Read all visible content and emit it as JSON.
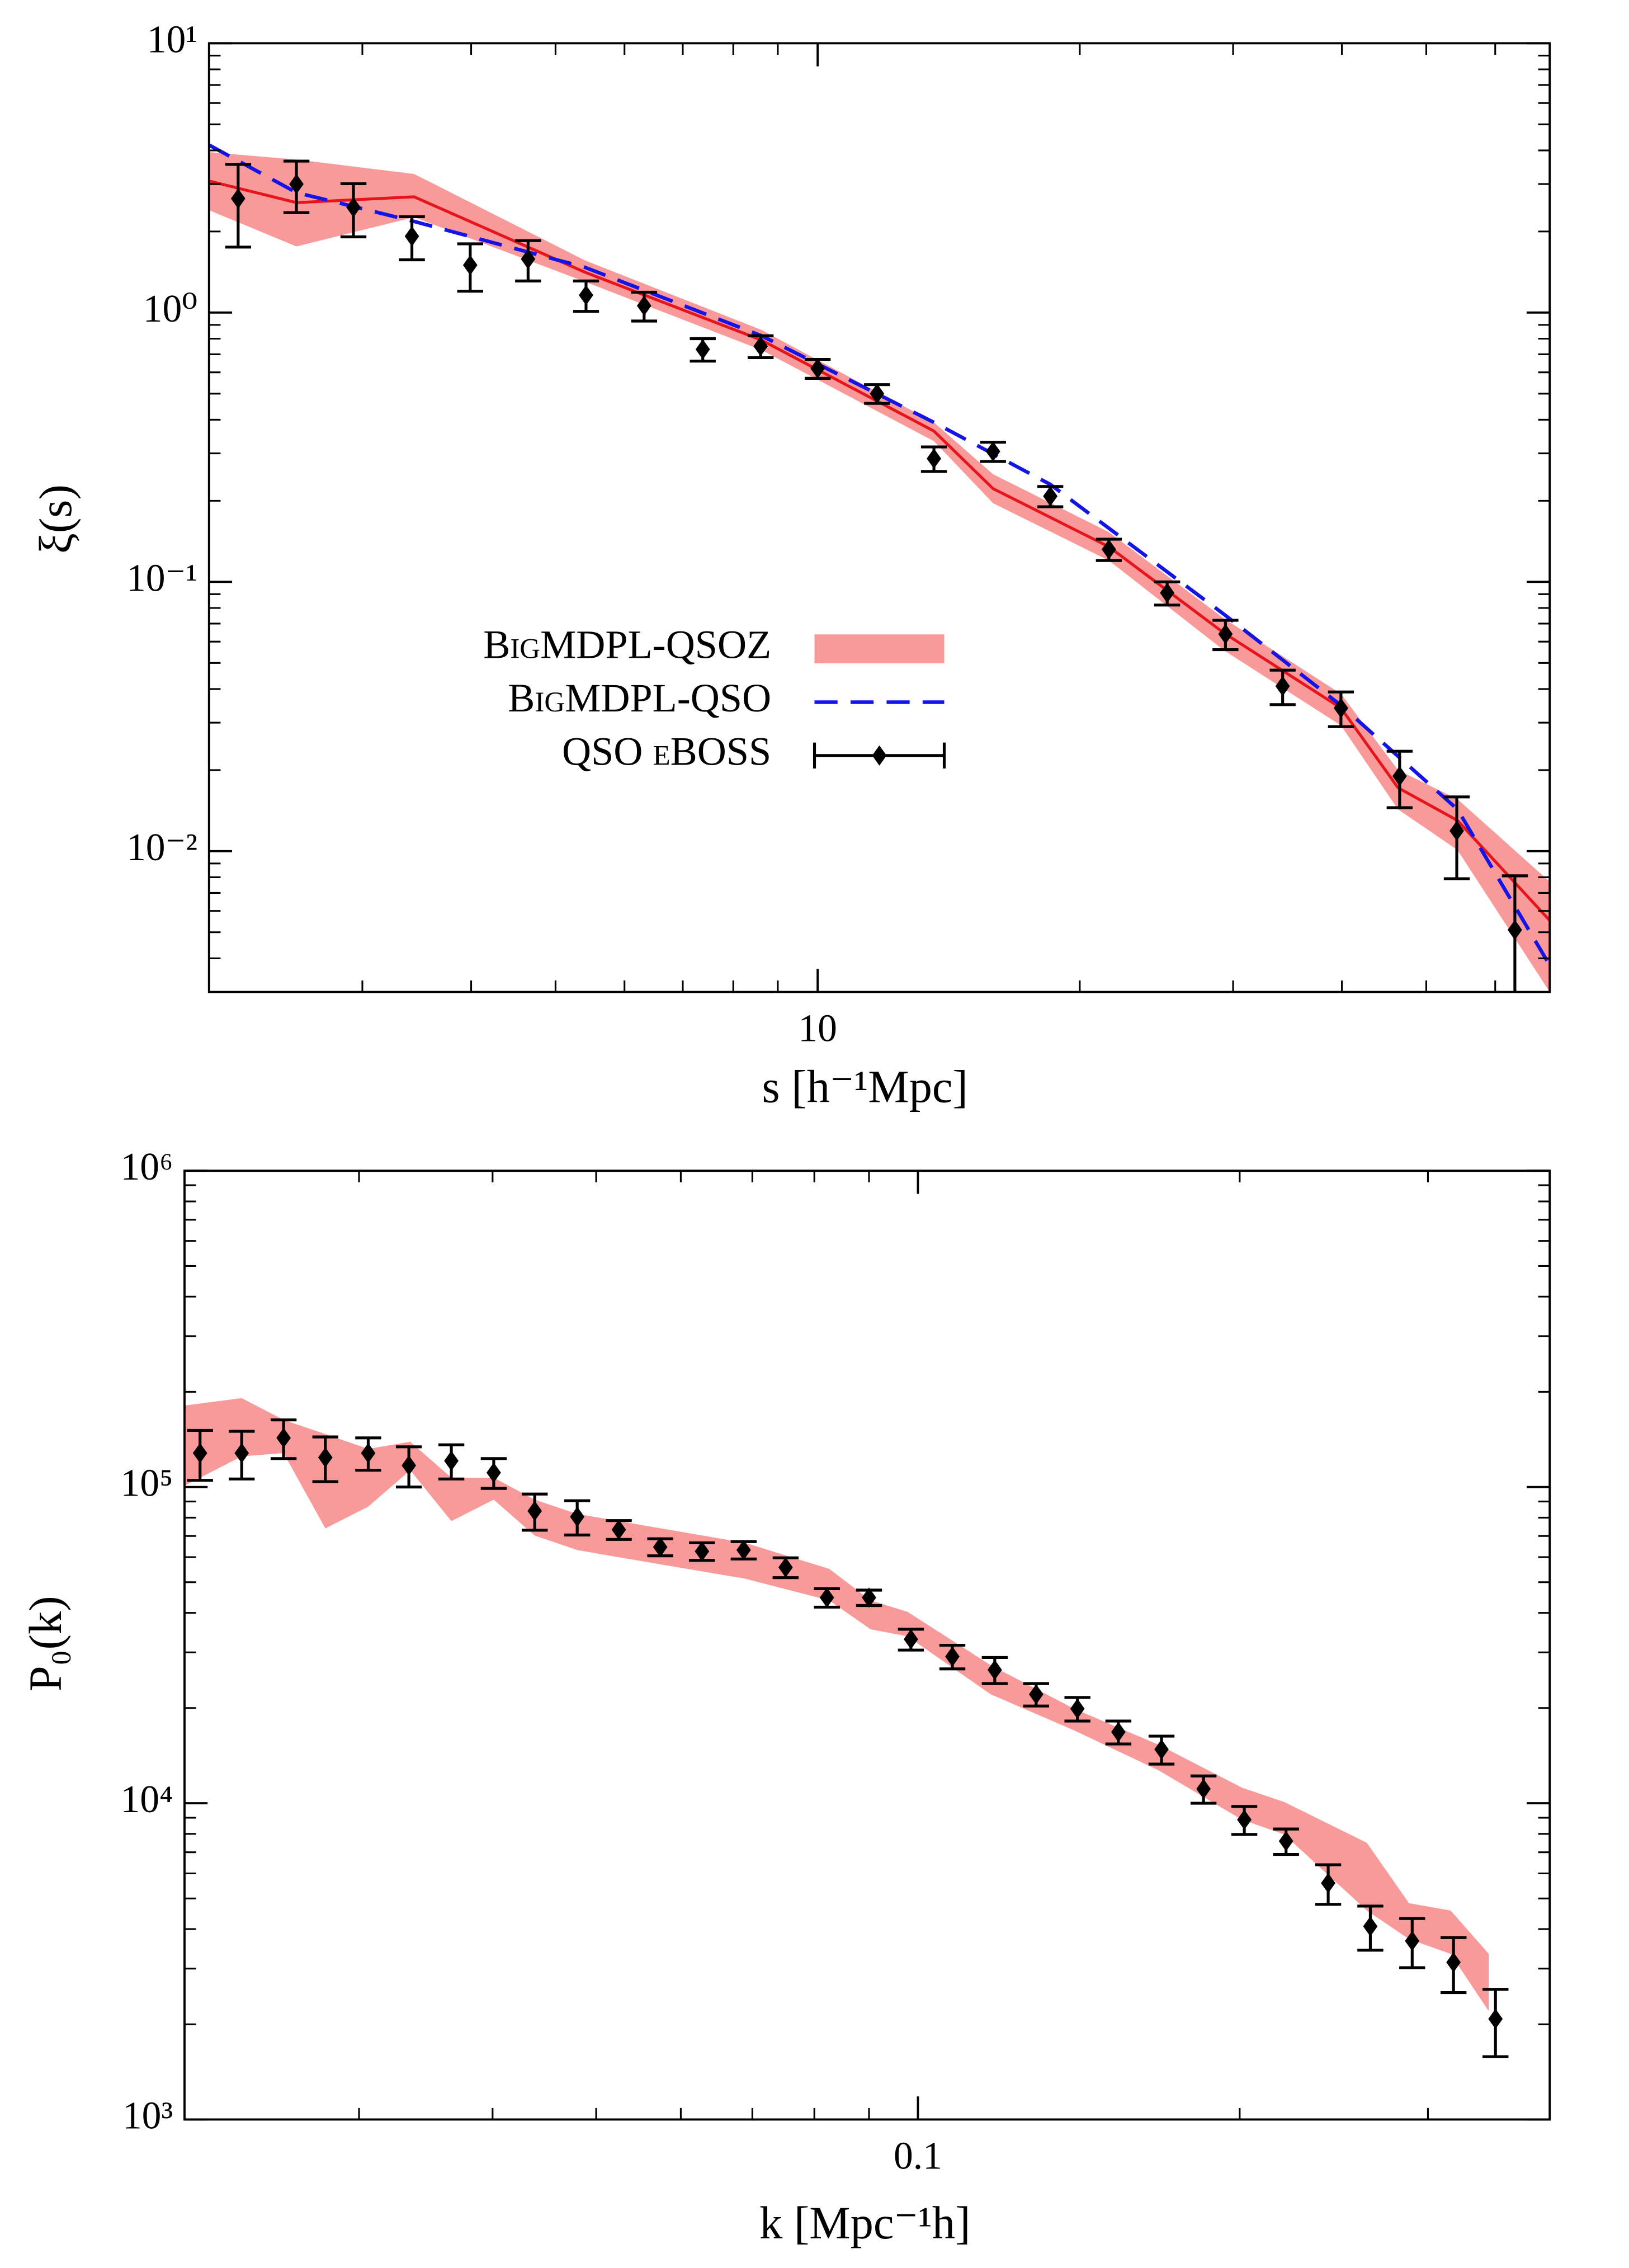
{
  "chart_data": [
    {
      "type": "line",
      "log_x": true,
      "log_y": true,
      "xlabel": "s [h⁻¹Mpc]",
      "ylabel": "ξ(s)",
      "xlim": [
        2.0,
        69.3
      ],
      "ylim": [
        0.003,
        10
      ],
      "xticks": [
        10
      ],
      "yticks": [
        {
          "value": 0.01,
          "label": "10⁻²"
        },
        {
          "value": 0.1,
          "label": "10⁻¹"
        },
        {
          "value": 1,
          "label": "10⁰"
        },
        {
          "value": 10,
          "label": "10¹"
        }
      ],
      "legend": "lower left",
      "series": [
        {
          "name": "BigMDPL-QSOZ",
          "style": "band",
          "color": "#f99a9a",
          "line_color": "#e8141b",
          "x": [
            2.0,
            2.52,
            3.44,
            5.41,
            8.62,
            13.6,
            15.9,
            21.6,
            29.3,
            39.9,
            46.4,
            54.3,
            69.3
          ],
          "values": [
            3.08,
            2.56,
            2.69,
            1.41,
            0.79,
            0.363,
            0.222,
            0.135,
            0.0645,
            0.034,
            0.0172,
            0.013,
            0.00553
          ],
          "upper": [
            3.94,
            3.7,
            3.27,
            1.56,
            0.862,
            0.391,
            0.251,
            0.153,
            0.073,
            0.0384,
            0.02,
            0.0156,
            0.0077
          ],
          "lower": [
            2.4,
            1.76,
            2.26,
            1.3,
            0.726,
            0.333,
            0.196,
            0.12,
            0.0556,
            0.0293,
            0.0143,
            0.0101,
            0.003
          ]
        },
        {
          "name": "BigMDPL-QSO",
          "style": "dashed",
          "color": "#1414e6",
          "x": [
            2.0,
            2.52,
            3.44,
            5.41,
            8.62,
            13.6,
            18.5,
            29.3,
            39.9,
            54.3,
            69.3
          ],
          "values": [
            4.19,
            2.79,
            2.18,
            1.47,
            0.82,
            0.391,
            0.23,
            0.0757,
            0.0348,
            0.0143,
            0.00377
          ]
        },
        {
          "name": "QSO eBOSS",
          "style": "errorbar",
          "color": "#000000",
          "x": [
            2.16,
            2.52,
            2.93,
            3.42,
            3.99,
            4.65,
            5.42,
            6.32,
            7.38,
            8.6,
            10.0,
            11.7,
            13.6,
            15.9,
            18.5,
            21.6,
            25.2,
            29.4,
            34.2,
            39.9,
            46.6,
            54.2,
            63.2
          ],
          "values": [
            2.65,
            3.0,
            2.46,
            1.92,
            1.5,
            1.58,
            1.16,
            1.06,
            0.73,
            0.75,
            0.62,
            0.5,
            0.287,
            0.305,
            0.208,
            0.132,
            0.091,
            0.064,
            0.041,
            0.034,
            0.019,
            0.0119,
            0.0051
          ],
          "errors": [
            0.9,
            0.65,
            0.55,
            0.35,
            0.3,
            0.27,
            0.15,
            0.13,
            0.07,
            0.07,
            0.05,
            0.04,
            0.03,
            0.025,
            0.018,
            0.012,
            0.009,
            0.008,
            0.006,
            0.005,
            0.0045,
            0.004,
            0.003
          ]
        }
      ]
    },
    {
      "type": "line",
      "log_x": true,
      "log_y": true,
      "xlabel": "k [Mpc⁻¹h]",
      "ylabel": "P₀(k)",
      "xlim": [
        0.0206,
        0.39
      ],
      "ylim": [
        1000,
        1000000
      ],
      "xticks": [
        0.1
      ],
      "yticks": [
        {
          "value": 1000,
          "label": "10³"
        },
        {
          "value": 10000,
          "label": "10⁴"
        },
        {
          "value": 100000,
          "label": "10⁵"
        },
        {
          "value": 1000000,
          "label": "10⁶"
        }
      ],
      "series": [
        {
          "style": "band",
          "color": "#f99a9a",
          "x": [
            0.0206,
            0.0233,
            0.0255,
            0.0279,
            0.0306,
            0.0335,
            0.0366,
            0.0401,
            0.0438,
            0.048,
            0.0575,
            0.0689,
            0.0826,
            0.0903,
            0.0978,
            0.117,
            0.14,
            0.168,
            0.201,
            0.22,
            0.263,
            0.288,
            0.315,
            0.342
          ],
          "upper": [
            181000,
            191000,
            163000,
            147000,
            132000,
            139000,
            107000,
            107000,
            91200,
            82200,
            74000,
            66600,
            55100,
            43800,
            40300,
            27300,
            19900,
            15300,
            11200,
            10100,
            7500,
            4830,
            4580,
            3340
          ],
          "lower": [
            101000,
            125000,
            128000,
            74000,
            86700,
            113000,
            78000,
            91200,
            70200,
            63200,
            56900,
            51300,
            43800,
            35500,
            33700,
            22100,
            17000,
            12700,
            8870,
            7980,
            4580,
            3720,
            3340,
            2200
          ]
        },
        {
          "style": "errorbar",
          "color": "#000000",
          "x": [
            0.0213,
            0.0233,
            0.0255,
            0.0279,
            0.0306,
            0.0334,
            0.0366,
            0.0401,
            0.0438,
            0.048,
            0.0525,
            0.0574,
            0.0628,
            0.0687,
            0.0752,
            0.0822,
            0.09,
            0.0985,
            0.1077,
            0.118,
            0.129,
            0.141,
            0.154,
            0.169,
            0.185,
            0.202,
            0.221,
            0.242,
            0.265,
            0.29,
            0.317,
            0.347
          ],
          "values": [
            128000,
            128000,
            143000,
            124000,
            128000,
            117000,
            121000,
            111000,
            84000,
            80500,
            73300,
            64600,
            62600,
            63200,
            55700,
            44700,
            44700,
            33000,
            29100,
            26400,
            22100,
            19900,
            16800,
            14800,
            11100,
            8870,
            7590,
            5590,
            4080,
            3670,
            3140,
            2080
          ],
          "errors": [
            23000,
            22000,
            20000,
            20000,
            15000,
            17000,
            15000,
            12000,
            11000,
            10000,
            5000,
            4000,
            4000,
            4000,
            4000,
            3000,
            2500,
            2500,
            2500,
            2500,
            1800,
            1700,
            1400,
            1500,
            1100,
            900,
            700,
            800,
            650,
            650,
            620,
            500
          ]
        }
      ]
    }
  ]
}
